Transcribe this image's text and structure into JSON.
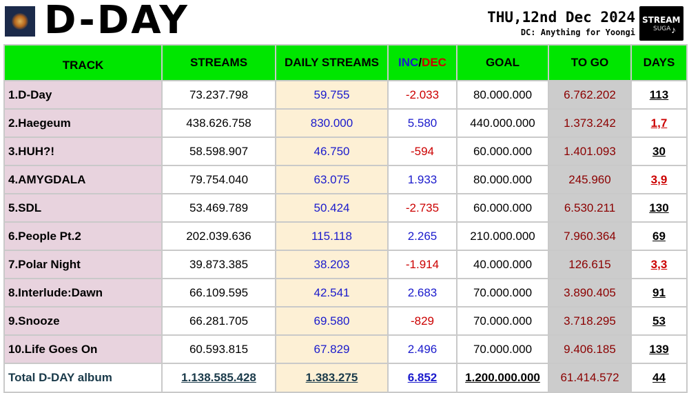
{
  "header": {
    "title": "D-DAY",
    "date": "THU,12nd Dec 2024",
    "dc": "DC: Anything for Yoongi",
    "logo_line1": "STREAM",
    "logo_line2": "SUGA"
  },
  "colors": {
    "header_green": "#00e600",
    "track_bg": "#e8d3de",
    "daily_bg": "#fdf0d5",
    "togo_bg": "#cccccc",
    "positive_blue": "#1a1acc",
    "negative_red": "#cc0000",
    "togo_text": "#8b0000"
  },
  "table": {
    "headers": {
      "track": "TRACK",
      "streams": "STREAMS",
      "daily": "DAILY STREAMS",
      "inc": "INC",
      "slash": "/",
      "dec": "DEC",
      "goal": "GOAL",
      "togo": "TO GO",
      "days": "DAYS"
    },
    "rows": [
      {
        "track": "1.D-Day",
        "streams": "73.237.798",
        "daily": "59.755",
        "inc": "-2.033",
        "goal": "80.000.000",
        "togo": "6.762.202",
        "days": "113"
      },
      {
        "track": "2.Haegeum",
        "streams": "438.626.758",
        "daily": "830.000",
        "inc": "5.580",
        "goal": "440.000.000",
        "togo": "1.373.242",
        "days": "1,7"
      },
      {
        "track": "3.HUH?!",
        "streams": "58.598.907",
        "daily": "46.750",
        "inc": "-594",
        "goal": "60.000.000",
        "togo": "1.401.093",
        "days": "30"
      },
      {
        "track": "4.AMYGDALA",
        "streams": "79.754.040",
        "daily": "63.075",
        "inc": "1.933",
        "goal": "80.000.000",
        "togo": "245.960",
        "days": "3,9"
      },
      {
        "track": "5.SDL",
        "streams": "53.469.789",
        "daily": "50.424",
        "inc": "-2.735",
        "goal": "60.000.000",
        "togo": "6.530.211",
        "days": "130"
      },
      {
        "track": "6.People Pt.2",
        "streams": "202.039.636",
        "daily": "115.118",
        "inc": "2.265",
        "goal": "210.000.000",
        "togo": "7.960.364",
        "days": "69"
      },
      {
        "track": "7.Polar Night",
        "streams": "39.873.385",
        "daily": "38.203",
        "inc": "-1.914",
        "goal": "40.000.000",
        "togo": "126.615",
        "days": "3,3"
      },
      {
        "track": "8.Interlude:Dawn",
        "streams": "66.109.595",
        "daily": "42.541",
        "inc": "2.683",
        "goal": "70.000.000",
        "togo": "3.890.405",
        "days": "91"
      },
      {
        "track": "9.Snooze",
        "streams": "66.281.705",
        "daily": "69.580",
        "inc": "-829",
        "goal": "70.000.000",
        "togo": "3.718.295",
        "days": "53"
      },
      {
        "track": "10.Life Goes On",
        "streams": "60.593.815",
        "daily": "67.829",
        "inc": "2.496",
        "goal": "70.000.000",
        "togo": "9.406.185",
        "days": "139"
      }
    ],
    "total": {
      "track": "Total D-DAY album",
      "streams": "1.138.585.428",
      "daily": "1.383.275",
      "inc": "6.852",
      "goal": "1.200.000.000",
      "togo": "61.414.572",
      "days": "44"
    }
  }
}
